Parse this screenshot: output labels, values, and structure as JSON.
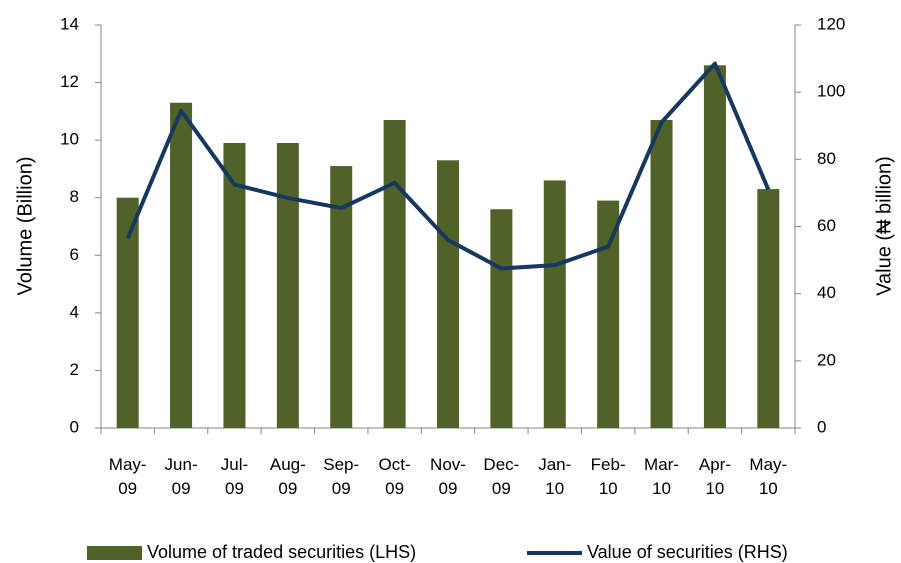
{
  "chart_data": {
    "type": "bar-line",
    "categories": [
      "May-09",
      "Jun-09",
      "Jul-09",
      "Aug-09",
      "Sep-09",
      "Oct-09",
      "Nov-09",
      "Dec-09",
      "Jan-10",
      "Feb-10",
      "Mar-10",
      "Apr-10",
      "May-10"
    ],
    "series": [
      {
        "name": "Volume of traded securities (LHS)",
        "type": "bar",
        "color": "#4f6228",
        "values": [
          8.0,
          11.3,
          9.9,
          9.9,
          9.1,
          10.7,
          9.3,
          7.6,
          8.6,
          7.9,
          10.7,
          12.6,
          8.3
        ]
      },
      {
        "name": "Value of securities (RHS)",
        "type": "line",
        "axis": "y2",
        "color": "#17375e",
        "values": [
          56.5,
          94.5,
          72.5,
          68.5,
          65.5,
          73,
          56,
          47.5,
          48.5,
          54,
          91,
          108.5,
          71
        ]
      }
    ],
    "ylabel": "Volume (Billion)",
    "y2label": "Value (₦ billion)",
    "ylim": [
      0,
      14
    ],
    "yticks": [
      0,
      2,
      4,
      6,
      8,
      10,
      12,
      14
    ],
    "y2lim": [
      0,
      120
    ],
    "y2ticks": [
      0,
      20,
      40,
      60,
      80,
      100,
      120
    ],
    "grid": false,
    "legend": "bottom"
  }
}
